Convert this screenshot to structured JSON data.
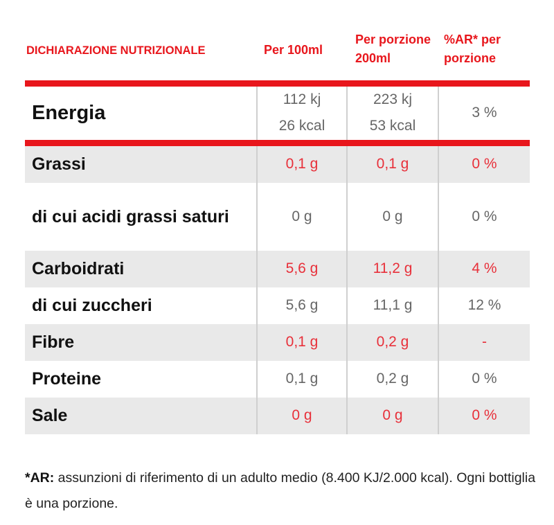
{
  "header": {
    "nutrition_title": "DICHIARAZIONE NUTRIZIONALE",
    "per_100ml": "Per 100ml",
    "per_portion": "Per porzione 200ml",
    "ar_per_portion": "%AR* per porzione"
  },
  "energy": {
    "label": "Energia",
    "per_100ml_kj": "112 kj",
    "per_100ml_kcal": "26 kcal",
    "per_portion_kj": "223 kj",
    "per_portion_kcal": "53 kcal",
    "ar": "3 %"
  },
  "rows": [
    {
      "label": "Grassi",
      "per_100ml": "0,1 g",
      "per_portion": "0,1 g",
      "ar": "0 %"
    },
    {
      "label": "di cui acidi grassi saturi",
      "per_100ml": "0 g",
      "per_portion": "0 g",
      "ar": "0 %"
    },
    {
      "label": "Carboidrati",
      "per_100ml": "5,6 g",
      "per_portion": "11,2 g",
      "ar": "4 %"
    },
    {
      "label": "di cui zuccheri",
      "per_100ml": "5,6 g",
      "per_portion": "11,1 g",
      "ar": "12 %"
    },
    {
      "label": "Fibre",
      "per_100ml": "0,1 g",
      "per_portion": "0,2 g",
      "ar": "-"
    },
    {
      "label": "Proteine",
      "per_100ml": "0,1 g",
      "per_portion": "0,2 g",
      "ar": "0 %"
    },
    {
      "label": "Sale",
      "per_100ml": "0 g",
      "per_portion": "0 g",
      "ar": "0 %"
    }
  ],
  "footnote": {
    "label": "*AR:",
    "text": "assunzioni di riferimento di un adulto medio (8.400 KJ/2.000 kcal). Ogni bottiglia è una porzione."
  },
  "colors": {
    "accent_red": "#e8161c",
    "row_shade": "#e9e9e9"
  }
}
